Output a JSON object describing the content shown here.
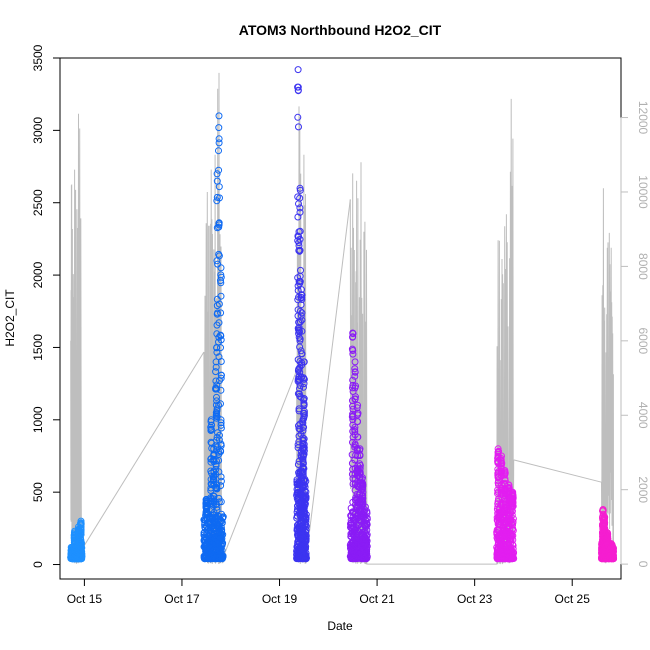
{
  "chart_data": {
    "type": "scatter",
    "title": "ATOM3 Northbound H2O2_CIT",
    "xlabel": "Date",
    "ylabel": "H2O2_CIT",
    "xlim_days": [
      14.5,
      26.0
    ],
    "ylim": [
      -100,
      3500
    ],
    "y_ticks": [
      0,
      500,
      1000,
      1500,
      2000,
      2500,
      3000,
      3500
    ],
    "x_ticks": [
      {
        "day": 15,
        "label": "Oct 15"
      },
      {
        "day": 17,
        "label": "Oct 17"
      },
      {
        "day": 19,
        "label": "Oct 19"
      },
      {
        "day": 21,
        "label": "Oct 21"
      },
      {
        "day": 23,
        "label": "Oct 23"
      },
      {
        "day": 25,
        "label": "Oct 25"
      }
    ],
    "y2_ticks": [
      0,
      2000,
      4000,
      6000,
      8000,
      10000,
      12000
    ],
    "y2_ticks_rotated": true,
    "y2_color": "#bebebe",
    "y2lim": [
      -400,
      13600
    ],
    "secondary_line_color": "#bebebe",
    "series": [
      {
        "color": "#1e90ff",
        "day_start": 14.72,
        "day_end": 14.95,
        "h2o2_base": [
          40,
          120
        ],
        "h2o2_peaks": [
          [
            14.88,
            260
          ],
          [
            14.93,
            300
          ],
          [
            14.8,
            230
          ]
        ],
        "alt_line": [
          [
            14.72,
            6000
          ],
          [
            14.74,
            10200
          ],
          [
            14.76,
            500
          ],
          [
            14.8,
            10600
          ],
          [
            14.83,
            300
          ],
          [
            14.88,
            12100
          ],
          [
            14.95,
            400
          ]
        ]
      },
      {
        "color": "#0f6af2",
        "day_start": 17.45,
        "day_end": 17.85,
        "h2o2_base": [
          40,
          350
        ],
        "h2o2_peaks": [
          [
            17.6,
            1000
          ],
          [
            17.7,
            1400
          ],
          [
            17.76,
            3100
          ],
          [
            17.8,
            2050
          ],
          [
            17.72,
            2700
          ],
          [
            17.65,
            800
          ],
          [
            17.5,
            450
          ]
        ],
        "alt_line": [
          [
            17.45,
            5700
          ],
          [
            17.52,
            10000
          ],
          [
            17.56,
            300
          ],
          [
            17.6,
            10600
          ],
          [
            17.64,
            400
          ],
          [
            17.68,
            11000
          ],
          [
            17.72,
            300
          ],
          [
            17.76,
            13200
          ],
          [
            17.82,
            500
          ],
          [
            17.85,
            200
          ]
        ]
      },
      {
        "color": "#3c34f0",
        "day_start": 19.35,
        "day_end": 19.55,
        "h2o2_base": [
          40,
          600
        ],
        "h2o2_peaks": [
          [
            19.38,
            3420
          ],
          [
            19.42,
            2600
          ],
          [
            19.45,
            1900
          ],
          [
            19.5,
            1400
          ],
          [
            19.4,
            2300
          ],
          [
            19.48,
            1000
          ]
        ],
        "alt_line": [
          [
            19.35,
            5200
          ],
          [
            19.4,
            12300
          ],
          [
            19.45,
            800
          ],
          [
            19.5,
            11000
          ],
          [
            19.55,
            200
          ]
        ]
      },
      {
        "color": "#8a1cf5",
        "day_start": 20.45,
        "day_end": 20.8,
        "h2o2_base": [
          40,
          400
        ],
        "h2o2_peaks": [
          [
            20.5,
            1600
          ],
          [
            20.55,
            1400
          ],
          [
            20.6,
            1100
          ],
          [
            20.7,
            600
          ],
          [
            20.65,
            800
          ]
        ],
        "alt_line": [
          [
            20.45,
            9800
          ],
          [
            20.5,
            10500
          ],
          [
            20.55,
            500
          ],
          [
            20.58,
            10300
          ],
          [
            20.62,
            300
          ],
          [
            20.67,
            10800
          ],
          [
            20.72,
            400
          ],
          [
            20.75,
            9200
          ],
          [
            20.8,
            0
          ]
        ]
      },
      {
        "color": "#e21ef0",
        "day_start": 23.45,
        "day_end": 23.8,
        "h2o2_base": [
          40,
          400
        ],
        "h2o2_peaks": [
          [
            23.48,
            800
          ],
          [
            23.55,
            750
          ],
          [
            23.62,
            650
          ],
          [
            23.7,
            550
          ],
          [
            23.78,
            500
          ]
        ],
        "alt_line": [
          [
            23.45,
            0
          ],
          [
            23.48,
            8700
          ],
          [
            23.52,
            500
          ],
          [
            23.56,
            8200
          ],
          [
            23.6,
            300
          ],
          [
            23.65,
            9400
          ],
          [
            23.7,
            400
          ],
          [
            23.75,
            12500
          ],
          [
            23.8,
            2800
          ]
        ]
      },
      {
        "color": "#f51ed0",
        "day_start": 25.6,
        "day_end": 25.85,
        "h2o2_base": [
          40,
          150
        ],
        "h2o2_peaks": [
          [
            25.63,
            380
          ],
          [
            25.66,
            330
          ],
          [
            25.72,
            220
          ]
        ],
        "alt_line": [
          [
            25.6,
            2200
          ],
          [
            25.64,
            10100
          ],
          [
            25.68,
            400
          ],
          [
            25.72,
            8500
          ],
          [
            25.76,
            8900
          ],
          [
            25.8,
            8500
          ],
          [
            25.83,
            6200
          ],
          [
            25.85,
            300
          ]
        ]
      }
    ],
    "alt_transit_lines": [
      [
        [
          14.95,
          400
        ],
        [
          17.45,
          5700
        ]
      ],
      [
        [
          17.85,
          200
        ],
        [
          19.35,
          5200
        ]
      ],
      [
        [
          19.55,
          200
        ],
        [
          20.45,
          9800
        ]
      ],
      [
        [
          20.8,
          0
        ],
        [
          23.45,
          0
        ]
      ],
      [
        [
          23.8,
          2800
        ],
        [
          25.6,
          2200
        ]
      ]
    ]
  }
}
